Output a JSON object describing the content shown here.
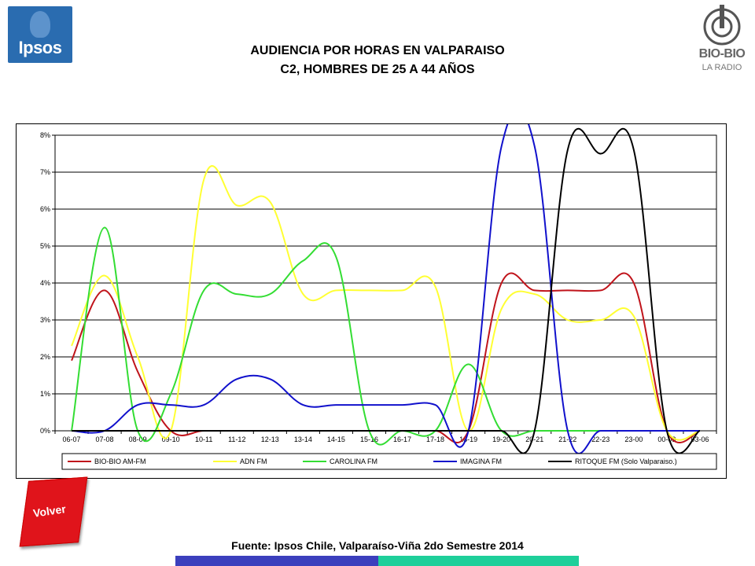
{
  "logos": {
    "ipsos": "Ipsos",
    "biobio": "BIO-BIO",
    "biobio_sub": "LA RADIO"
  },
  "header": {
    "title_line1": "AUDIENCIA POR HORAS EN VALPARAISO",
    "title_line2": "C2, HOMBRES  DE 25 A 44 AÑOS"
  },
  "volver_button": {
    "label": "Volver",
    "color": "#e0141b"
  },
  "footer": {
    "source": "Fuente: Ipsos Chile, Valparaíso-Viña 2do Semestre 2014"
  },
  "chart_data": {
    "type": "line",
    "title": "",
    "xlabel": "",
    "ylabel": "",
    "ylim": [
      0,
      8
    ],
    "yticks": [
      "0%",
      "1%",
      "2%",
      "3%",
      "4%",
      "5%",
      "6%",
      "7%",
      "8%"
    ],
    "grid": true,
    "legend_position": "bottom",
    "categories": [
      "06-07",
      "07-08",
      "08-09",
      "09-10",
      "10-11",
      "11-12",
      "12-13",
      "13-14",
      "14-15",
      "15-16",
      "16-17",
      "17-18",
      "18-19",
      "19-20",
      "20-21",
      "21-22",
      "22-23",
      "23-00",
      "00-03",
      "03-06"
    ],
    "series": [
      {
        "name": "BIO-BIO AM-FM",
        "color": "#c0141b",
        "values": [
          1.9,
          3.8,
          1.6,
          0,
          0,
          0,
          0,
          0,
          0,
          0,
          0,
          0,
          0,
          4.0,
          3.8,
          3.8,
          3.8,
          4.0,
          0,
          0
        ]
      },
      {
        "name": "ADN FM",
        "color": "#ffff33",
        "values": [
          2.3,
          4.2,
          2.0,
          0,
          6.8,
          6.1,
          6.2,
          3.7,
          3.8,
          3.8,
          3.8,
          3.9,
          0,
          3.3,
          3.7,
          3.0,
          3.0,
          3.1,
          0,
          0
        ]
      },
      {
        "name": "CAROLINA FM",
        "color": "#33dd33",
        "values": [
          0,
          5.5,
          0,
          1.0,
          3.8,
          3.7,
          3.7,
          4.6,
          4.7,
          0,
          0,
          0,
          1.8,
          0,
          0,
          0,
          0,
          0,
          0,
          0
        ]
      },
      {
        "name": "IMAGINA FM",
        "color": "#1111cc",
        "values": [
          0,
          0,
          0.7,
          0.7,
          0.7,
          1.4,
          1.4,
          0.7,
          0.7,
          0.7,
          0.7,
          0.7,
          0,
          7.7,
          7.7,
          0,
          0,
          0,
          0,
          0
        ]
      },
      {
        "name": "RITOQUE FM (Solo Valparaiso.)",
        "color": "#000000",
        "values": [
          0,
          0,
          0,
          0,
          0,
          0,
          0,
          0,
          0,
          0,
          0,
          0,
          0,
          0,
          0,
          7.6,
          7.5,
          7.6,
          0,
          0
        ]
      }
    ]
  }
}
